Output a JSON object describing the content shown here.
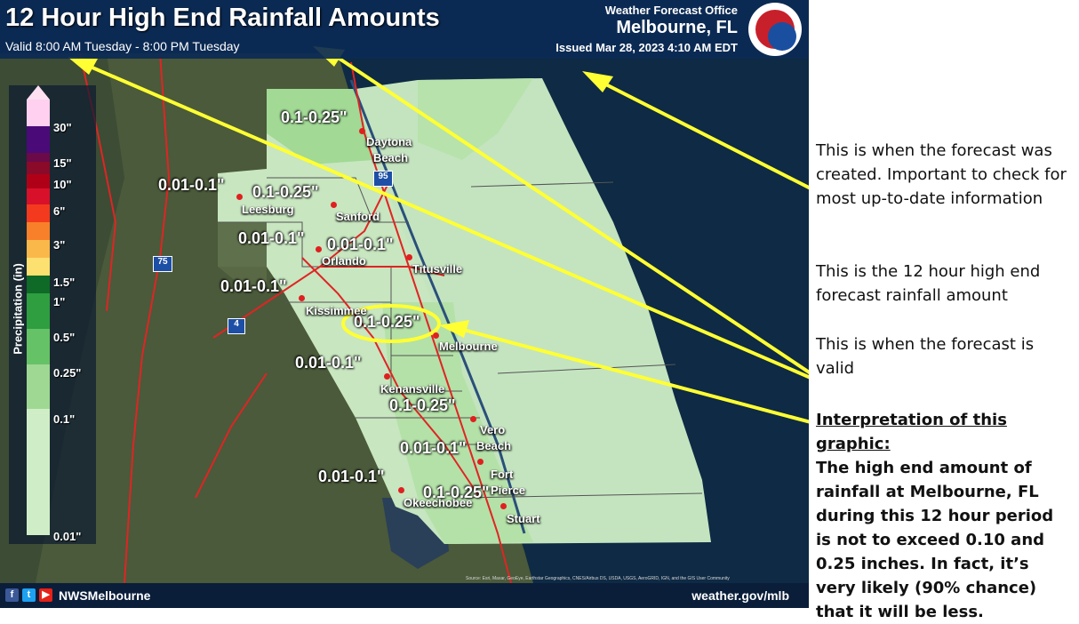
{
  "header": {
    "title": "12 Hour High End Rainfall Amounts",
    "valid": "Valid 8:00 AM Tuesday - 8:00 PM Tuesday",
    "office": "Weather Forecast Office",
    "city": "Melbourne, FL",
    "issued": "Issued Mar 28, 2023 4:10 AM EDT",
    "logo_text": "NATIONAL WEATHER SERVICE"
  },
  "legend": {
    "title": "Precipitation (in)",
    "labels": [
      "30\"",
      "15\"",
      "10\"",
      "6\"",
      "3\"",
      "1.5\"",
      "1\"",
      "0.5\"",
      "0.25\"",
      "0.1\"",
      "0.01\""
    ]
  },
  "amounts": [
    "0.1-0.25\"",
    "0.01-0.1\"",
    "0.1-0.25\"",
    "0.01-0.1\"",
    "0.01-0.1\"",
    "0.01-0.1\"",
    "0.1-0.25\"",
    "0.01-0.1\"",
    "0.1-0.25\"",
    "0.01-0.1\"",
    "0.01-0.1\"",
    "0.1-0.25\""
  ],
  "cities": [
    "Daytona",
    "Beach",
    "Leesburg",
    "Sanford",
    "Orlando",
    "Titusville",
    "Kissimmee",
    "Melbourne",
    "Kenansville",
    "Vero",
    "Beach",
    "Fort",
    "Pierce",
    "Okeechobee",
    "Stuart"
  ],
  "highways": [
    "95",
    "75",
    "4"
  ],
  "footer": {
    "handle": "NWSMelbourne",
    "url": "weather.gov/mlb",
    "source": "Source: Esri, Maxar, GeoEye, Earthstar Geographics, CNES/Airbus DS, USDA, USGS, AeroGRID, IGN, and the GIS User Community"
  },
  "notes": {
    "issued": "This is when the forecast was created. Important to check for most up-to-date information",
    "amount": "This is the 12 hour high end forecast rainfall amount",
    "valid": "This is when the forecast is valid",
    "interp_heading": "Interpretation of this graphic:",
    "interp_body": "The high end amount of rainfall at Melbourne, FL during this 12 hour period is not to exceed 0.10 and 0.25 inches. In fact, it’s very likely (90% chance) that it will be less."
  },
  "colors": {
    "light_green": "#cfeec7",
    "mid_green": "#9fd892",
    "highlight": "#ffff33"
  }
}
